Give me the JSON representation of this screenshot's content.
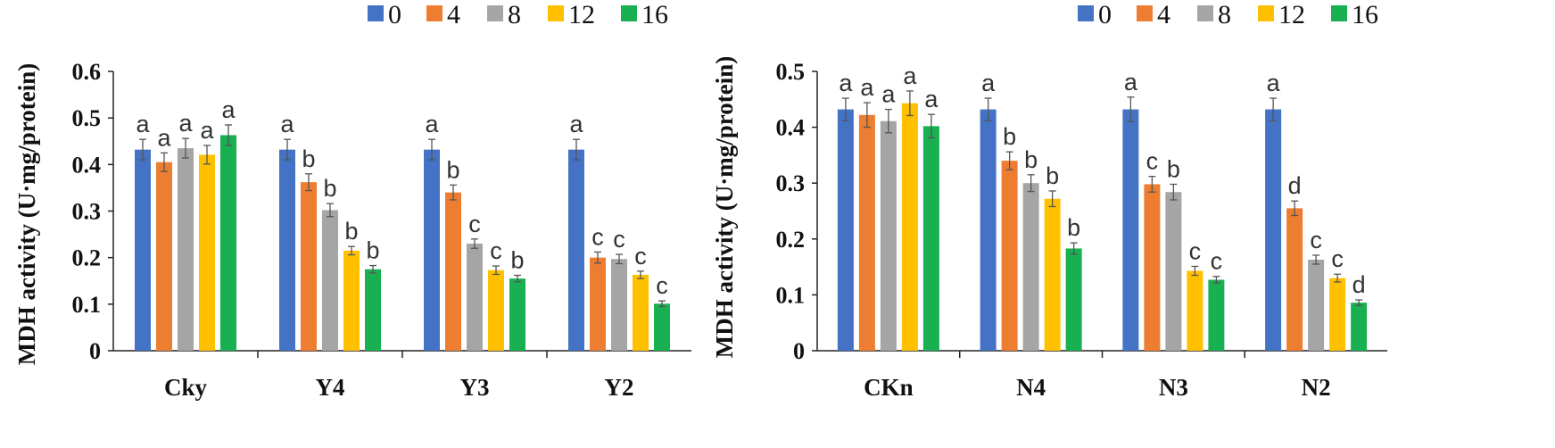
{
  "colors": [
    "#4472c4",
    "#ed7d31",
    "#a5a5a5",
    "#ffc000",
    "#18b050"
  ],
  "chart_data": [
    {
      "type": "bar",
      "ylabel": "MDH activity (U·mg/protein)",
      "xlabel": "",
      "ylim": [
        0,
        0.6
      ],
      "yticks": [
        "0",
        "0.1",
        "0.2",
        "0.3",
        "0.4",
        "0.5",
        "0.6"
      ],
      "legend_position": "top-right",
      "categories": [
        "Cky",
        "Y4",
        "Y3",
        "Y2"
      ],
      "series": [
        {
          "name": "0",
          "values": [
            0.432,
            0.432,
            0.432,
            0.432
          ],
          "errors": [
            0.022,
            0.022,
            0.022,
            0.022
          ],
          "letters": [
            "a",
            "a",
            "a",
            "a"
          ]
        },
        {
          "name": "4",
          "values": [
            0.405,
            0.362,
            0.34,
            0.2
          ],
          "errors": [
            0.02,
            0.018,
            0.016,
            0.012
          ],
          "letters": [
            "a",
            "b",
            "b",
            "c"
          ]
        },
        {
          "name": "8",
          "values": [
            0.435,
            0.302,
            0.23,
            0.197
          ],
          "errors": [
            0.021,
            0.014,
            0.01,
            0.01
          ],
          "letters": [
            "a",
            "b",
            "c",
            "c"
          ]
        },
        {
          "name": "12",
          "values": [
            0.421,
            0.215,
            0.173,
            0.163
          ],
          "errors": [
            0.02,
            0.009,
            0.009,
            0.008
          ],
          "letters": [
            "a",
            "b",
            "c",
            "c"
          ]
        },
        {
          "name": "16",
          "values": [
            0.463,
            0.175,
            0.155,
            0.101
          ],
          "errors": [
            0.022,
            0.008,
            0.007,
            0.006
          ],
          "letters": [
            "a",
            "b",
            "b",
            "c"
          ]
        }
      ]
    },
    {
      "type": "bar",
      "ylabel": "MDH activity (U·mg/protein)",
      "xlabel": "",
      "ylim": [
        0,
        0.5
      ],
      "yticks": [
        "0",
        "0.1",
        "0.2",
        "0.3",
        "0.4",
        "0.5"
      ],
      "legend_position": "top-right",
      "categories": [
        "CKn",
        "N4",
        "N3",
        "N2"
      ],
      "series": [
        {
          "name": "0",
          "values": [
            0.432,
            0.432,
            0.432,
            0.432
          ],
          "errors": [
            0.02,
            0.02,
            0.022,
            0.02
          ],
          "letters": [
            "a",
            "a",
            "a",
            "a"
          ]
        },
        {
          "name": "4",
          "values": [
            0.422,
            0.34,
            0.298,
            0.255
          ],
          "errors": [
            0.022,
            0.016,
            0.014,
            0.013
          ],
          "letters": [
            "a",
            "b",
            "c",
            "d"
          ]
        },
        {
          "name": "8",
          "values": [
            0.411,
            0.3,
            0.284,
            0.163
          ],
          "errors": [
            0.021,
            0.015,
            0.014,
            0.008
          ],
          "letters": [
            "a",
            "b",
            "b",
            "c"
          ]
        },
        {
          "name": "12",
          "values": [
            0.443,
            0.272,
            0.143,
            0.13
          ],
          "errors": [
            0.022,
            0.014,
            0.008,
            0.007
          ],
          "letters": [
            "a",
            "b",
            "c",
            "c"
          ]
        },
        {
          "name": "16",
          "values": [
            0.402,
            0.183,
            0.127,
            0.086
          ],
          "errors": [
            0.021,
            0.01,
            0.006,
            0.005
          ],
          "letters": [
            "a",
            "b",
            "c",
            "d"
          ]
        }
      ]
    }
  ]
}
